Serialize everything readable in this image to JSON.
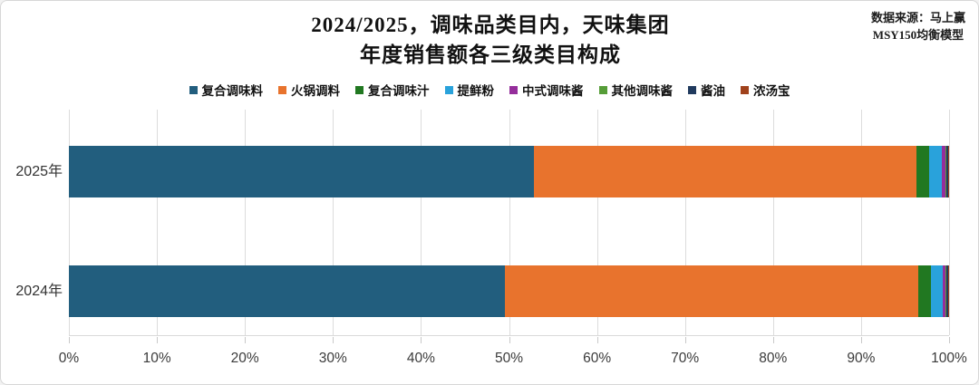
{
  "title": {
    "line1": "2024/2025，调味品类目内，天味集团",
    "line2": "年度销售额各三级类目构成"
  },
  "source": {
    "line1": "数据来源：马上赢",
    "line2": "MSY150均衡模型"
  },
  "chart_data": {
    "type": "bar",
    "orientation": "horizontal",
    "stacked": true,
    "title": "2024/2025，调味品类目内，天味集团 年度销售额各三级类目构成",
    "categories": [
      "2025年",
      "2024年"
    ],
    "series": [
      {
        "name": "复合调味料",
        "color": "#225E7E",
        "values": [
          52.8,
          49.5
        ]
      },
      {
        "name": "火锅调料",
        "color": "#E8732D",
        "values": [
          43.5,
          47.0
        ]
      },
      {
        "name": "复合调味汁",
        "color": "#217821",
        "values": [
          1.4,
          1.4
        ]
      },
      {
        "name": "提鲜粉",
        "color": "#29A2DB",
        "values": [
          1.5,
          1.4
        ]
      },
      {
        "name": "中式调味酱",
        "color": "#952E9B",
        "values": [
          0.4,
          0.3
        ]
      },
      {
        "name": "其他调味酱",
        "color": "#569D38",
        "values": [
          0.1,
          0.1
        ]
      },
      {
        "name": "酱油",
        "color": "#203A5E",
        "values": [
          0.2,
          0.2
        ]
      },
      {
        "name": "浓汤宝",
        "color": "#A0421C",
        "values": [
          0.1,
          0.1
        ]
      }
    ],
    "x_ticks": [
      "0%",
      "10%",
      "20%",
      "30%",
      "40%",
      "50%",
      "60%",
      "70%",
      "80%",
      "90%",
      "100%"
    ],
    "xlim": [
      0,
      100
    ],
    "grid": "vertical",
    "legend_position": "top"
  }
}
